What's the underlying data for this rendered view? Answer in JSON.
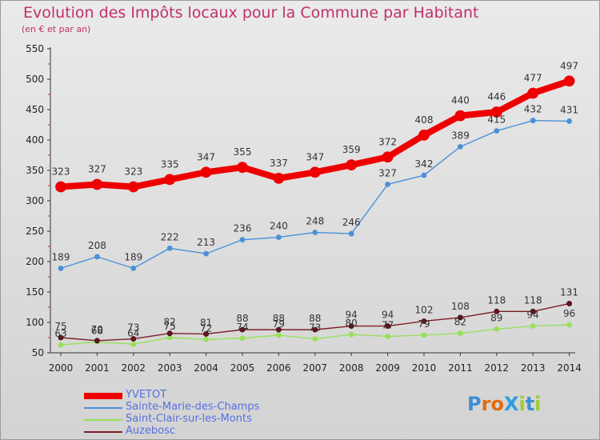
{
  "title": "Evolution des Impôts locaux pour la Commune par Habitant",
  "subtitle": "(en € et par an)",
  "logo": {
    "text": "ProXiti",
    "letter_colors": [
      "#3d8fd1",
      "#e36b0b",
      "#e36b0b",
      "#2e9ee0",
      "#9acd32",
      "#3d8fd1",
      "#9acd32"
    ]
  },
  "chart_data": {
    "type": "line",
    "title": "Evolution des Impôts locaux pour la Commune par Habitant",
    "subtitle": "(en € et par an)",
    "x": [
      "2000",
      "2001",
      "2002",
      "2003",
      "2004",
      "2005",
      "2006",
      "2007",
      "2008",
      "2009",
      "2010",
      "2011",
      "2012",
      "2013",
      "2014"
    ],
    "ylim": [
      50,
      550
    ],
    "yticks": [
      50,
      100,
      150,
      200,
      250,
      300,
      350,
      400,
      450,
      500,
      550
    ],
    "grid": false,
    "legend_position": "bottom-left",
    "series": [
      {
        "name": "YVETOT",
        "color": "#ee0000",
        "values": [
          323,
          327,
          323,
          335,
          347,
          355,
          337,
          347,
          359,
          372,
          408,
          440,
          446,
          477,
          497
        ],
        "labels": [
          "323",
          "327",
          "323",
          "335",
          "347",
          "355",
          "337",
          "347",
          "359",
          "372",
          "408",
          "440",
          "446",
          "477",
          "497"
        ]
      },
      {
        "name": "Sainte-Marie-des-Champs",
        "color": "#4a90d9",
        "values": [
          189,
          208,
          189,
          222,
          213,
          236,
          240,
          248,
          246,
          327,
          342,
          389,
          415,
          432,
          431
        ],
        "labels": [
          "189",
          "208",
          "189",
          "222",
          "213",
          "236",
          "240",
          "248",
          "246",
          "327",
          "342",
          "389",
          "415",
          "432",
          "431"
        ]
      },
      {
        "name": "Saint-Clair-sur-les-Monts",
        "color": "#99e05a",
        "values": [
          63,
          68,
          64,
          75,
          72,
          74,
          79,
          73,
          80,
          77,
          79,
          82,
          89,
          94,
          96
        ],
        "labels": [
          "63",
          "68",
          "64",
          "75",
          "72",
          "74",
          "79",
          "73",
          "80",
          "77",
          "79",
          "82",
          "89",
          "94",
          "96"
        ]
      },
      {
        "name": "Auzebosc",
        "color": "#7a1e28",
        "values": [
          75,
          70,
          73,
          82,
          81,
          88,
          88,
          88,
          94,
          94,
          102,
          108,
          118,
          118,
          131
        ],
        "labels": [
          "75",
          "70",
          "73",
          "82",
          "81",
          "88",
          "88",
          "88",
          "94",
          "94",
          "102",
          "108",
          "118",
          "118",
          "131"
        ]
      }
    ]
  }
}
